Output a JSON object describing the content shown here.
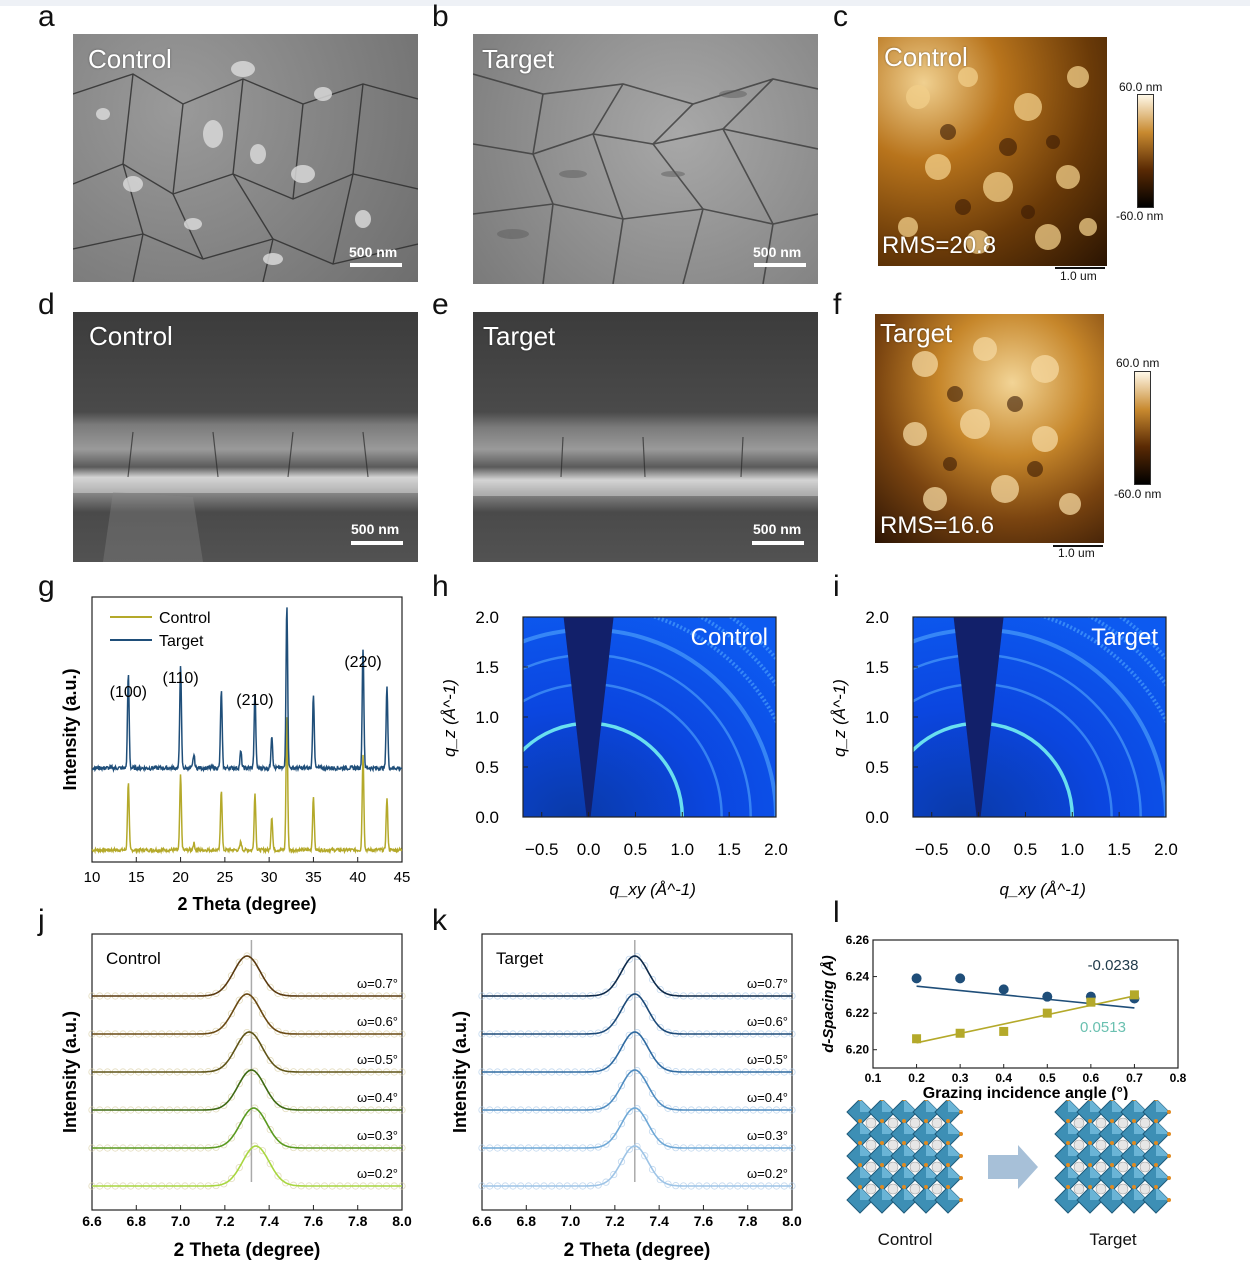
{
  "panel_labels": {
    "a": "a",
    "b": "b",
    "c": "c",
    "d": "d",
    "e": "e",
    "f": "f",
    "g": "g",
    "h": "h",
    "i": "i",
    "j": "j",
    "k": "k",
    "l": "l"
  },
  "sem": {
    "a": {
      "label": "Control",
      "scalebar": "500 nm"
    },
    "b": {
      "label": "Target",
      "scalebar": "500 nm"
    },
    "d": {
      "label": "Control",
      "scalebar": "500 nm"
    },
    "e": {
      "label": "Target",
      "scalebar": "500 nm"
    }
  },
  "afm": {
    "c": {
      "label": "Control",
      "rms": "RMS=20.8",
      "cb_max": "60.0 nm",
      "cb_min": "-60.0 nm",
      "scalebar": "1.0 um"
    },
    "f": {
      "label": "Target",
      "rms": "RMS=16.6",
      "cb_max": "60.0 nm",
      "cb_min": "-60.0 nm",
      "scalebar": "1.0 um"
    }
  },
  "schematic": {
    "left_label": "Control",
    "right_label": "Target"
  },
  "colors": {
    "control_xrd": "#b4a92a",
    "target_xrd": "#1f4e79",
    "fit_dark": "#1f4e79",
    "fit_yellow": "#b4a92a",
    "giwaxs_bg": "#0a2fd8"
  },
  "chart_data": [
    {
      "id": "g",
      "type": "line",
      "xlabel": "2 Theta (degree)",
      "ylabel": "Intensity (a.u.)",
      "xlim": [
        10,
        45
      ],
      "xticks": [
        "10",
        "15",
        "20",
        "25",
        "30",
        "35",
        "40",
        "45"
      ],
      "legend": [
        "Control",
        "Target"
      ],
      "annotations": [
        {
          "text": "(100)",
          "x": 14.1
        },
        {
          "text": "(110)",
          "x": 20.0
        },
        {
          "text": "(210)",
          "x": 28.4
        },
        {
          "text": "(220)",
          "x": 40.6
        }
      ],
      "peaks": [
        {
          "x": 14.1,
          "control": 0.5,
          "target": 0.57
        },
        {
          "x": 20.0,
          "control": 0.55,
          "target": 0.63
        },
        {
          "x": 21.5,
          "control": 0.05,
          "target": 0.08
        },
        {
          "x": 24.6,
          "control": 0.45,
          "target": 0.47
        },
        {
          "x": 26.8,
          "control": 0.06,
          "target": 0.1
        },
        {
          "x": 28.4,
          "control": 0.42,
          "target": 0.45
        },
        {
          "x": 30.3,
          "control": 0.25,
          "target": 0.2
        },
        {
          "x": 32.0,
          "control": 1.0,
          "target": 1.0
        },
        {
          "x": 35.0,
          "control": 0.4,
          "target": 0.45
        },
        {
          "x": 40.6,
          "control": 0.7,
          "target": 0.73
        },
        {
          "x": 43.3,
          "control": 0.38,
          "target": 0.5
        }
      ]
    },
    {
      "id": "h",
      "type": "heatmap",
      "label": "Control",
      "xlabel": "q_xy (Å^-1)",
      "ylabel": "q_z (Å^-1)",
      "xlim": [
        -0.7,
        2.0
      ],
      "ylim": [
        0.0,
        2.0
      ],
      "xticks": [
        "−0.5",
        "0.0",
        "0.5",
        "1.0",
        "1.5",
        "2.0"
      ],
      "yticks": [
        "0.0",
        "0.5",
        "1.0",
        "1.5",
        "2.0"
      ],
      "rings_q": [
        1.0,
        1.42,
        1.73,
        2.0,
        2.25,
        2.45,
        2.62
      ]
    },
    {
      "id": "i",
      "type": "heatmap",
      "label": "Target",
      "xlabel": "q_xy (Å^-1)",
      "ylabel": "q_z (Å^-1)",
      "xlim": [
        -0.7,
        2.0
      ],
      "ylim": [
        0.0,
        2.0
      ],
      "xticks": [
        "−0.5",
        "0.0",
        "0.5",
        "1.0",
        "1.5",
        "2.0"
      ],
      "yticks": [
        "0.0",
        "0.5",
        "1.0",
        "1.5",
        "2.0"
      ],
      "rings_q": [
        1.0,
        1.42,
        1.73,
        2.0,
        2.25,
        2.45,
        2.62
      ]
    },
    {
      "id": "j",
      "type": "line",
      "label": "Control",
      "xlabel": "2 Theta (degree)",
      "ylabel": "Intensity (a.u.)",
      "xlim": [
        6.6,
        8.0
      ],
      "xticks": [
        "6.6",
        "6.8",
        "7.0",
        "7.2",
        "7.4",
        "7.6",
        "7.8",
        "8.0"
      ],
      "reference_line": 7.32,
      "series": [
        {
          "name": "ω=0.7°",
          "center": 7.3,
          "color": "#5a3a10"
        },
        {
          "name": "ω=0.6°",
          "center": 7.3,
          "color": "#6a4a14"
        },
        {
          "name": "ω=0.5°",
          "center": 7.31,
          "color": "#5f5418"
        },
        {
          "name": "ω=0.4°",
          "center": 7.32,
          "color": "#3f6a14"
        },
        {
          "name": "ω=0.3°",
          "center": 7.33,
          "color": "#5a9a20"
        },
        {
          "name": "ω=0.2°",
          "center": 7.34,
          "color": "#a8d640"
        }
      ]
    },
    {
      "id": "k",
      "type": "line",
      "label": "Target",
      "xlabel": "2 Theta (degree)",
      "ylabel": "Intensity (a.u.)",
      "xlim": [
        6.6,
        8.0
      ],
      "xticks": [
        "6.6",
        "6.8",
        "7.0",
        "7.2",
        "7.4",
        "7.6",
        "7.8",
        "8.0"
      ],
      "reference_line": 7.29,
      "series": [
        {
          "name": "ω=0.7°",
          "center": 7.29,
          "color": "#0e2a4a"
        },
        {
          "name": "ω=0.6°",
          "center": 7.29,
          "color": "#1d4a78"
        },
        {
          "name": "ω=0.5°",
          "center": 7.29,
          "color": "#2f6aa0"
        },
        {
          "name": "ω=0.4°",
          "center": 7.29,
          "color": "#4f8cc0"
        },
        {
          "name": "ω=0.3°",
          "center": 7.29,
          "color": "#6fa8d6"
        },
        {
          "name": "ω=0.2°",
          "center": 7.29,
          "color": "#9ec4e6"
        }
      ]
    },
    {
      "id": "l",
      "type": "scatter",
      "xlabel": "Grazing incidence angle (°)",
      "ylabel": "d-Spacing (Å)",
      "xlim": [
        0.1,
        0.8
      ],
      "ylim": [
        6.19,
        6.26
      ],
      "xticks": [
        "0.1",
        "0.2",
        "0.3",
        "0.4",
        "0.5",
        "0.6",
        "0.7",
        "0.8"
      ],
      "yticks": [
        "6.20",
        "6.22",
        "6.24",
        "6.26"
      ],
      "series": [
        {
          "values": [
            [
              0.2,
              6.239
            ],
            [
              0.3,
              6.239
            ],
            [
              0.4,
              6.233
            ],
            [
              0.5,
              6.229
            ],
            [
              0.6,
              6.229
            ],
            [
              0.7,
              6.228
            ]
          ],
          "slope_label": "-0.0238",
          "color": "#1f4e79",
          "marker": "circle",
          "fit": [
            6.2395,
            -0.0238
          ]
        },
        {
          "values": [
            [
              0.2,
              6.206
            ],
            [
              0.3,
              6.209
            ],
            [
              0.4,
              6.21
            ],
            [
              0.5,
              6.22
            ],
            [
              0.6,
              6.226
            ],
            [
              0.7,
              6.23
            ]
          ],
          "slope_label": "0.0513",
          "color": "#b4a92a",
          "marker": "square",
          "fit": [
            6.1935,
            0.0513
          ]
        }
      ]
    }
  ]
}
